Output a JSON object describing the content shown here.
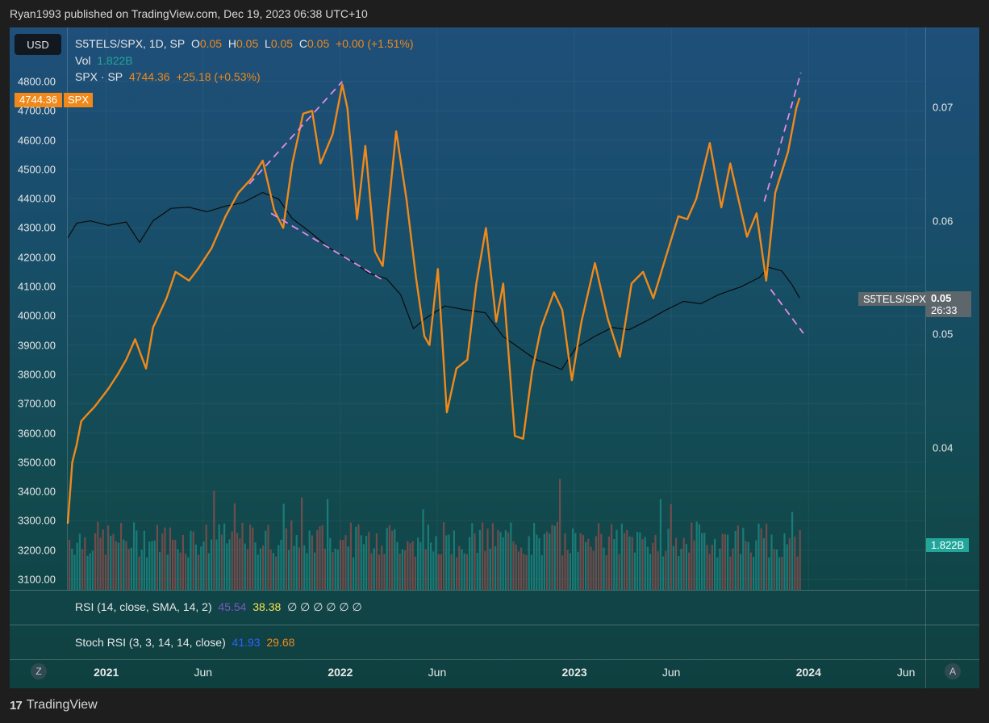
{
  "header": {
    "publisher_line": "Ryan1993 published on TradingView.com, Dec 19, 2023 06:38 UTC+10"
  },
  "currency_button": "USD",
  "legend": {
    "main_symbol": "S5TELS/SPX, 1D, SP",
    "o_label": "O",
    "o_value": "0.05",
    "h_label": "H",
    "h_value": "0.05",
    "l_label": "L",
    "l_value": "0.05",
    "c_label": "C",
    "c_value": "0.05",
    "change": "+0.00 (+1.51%)",
    "vol_label": "Vol",
    "vol_value": "1.822B",
    "overlay_symbol": "SPX · SP",
    "overlay_value": "4744.36",
    "overlay_change": "+25.18 (+0.53%)"
  },
  "price_flag": {
    "value": "4744.36",
    "symbol": "SPX"
  },
  "right_flags": {
    "symbol": "S5TELS/SPX",
    "value": "0.05",
    "countdown": "26:33",
    "volume": "1.822B"
  },
  "indicators": {
    "rsi_label": "RSI (14, close, SMA, 14, 2)",
    "rsi_value": "45.54",
    "rsi_ma": "38.38",
    "rsi_extra": "∅ ∅ ∅ ∅ ∅ ∅",
    "stoch_label": "Stoch RSI (3, 3, 14, 14, close)",
    "stoch_k": "41.93",
    "stoch_d": "29.68"
  },
  "time_axis": [
    "2021",
    "Jun",
    "2022",
    "Jun",
    "2023",
    "Jun",
    "2024",
    "Jun"
  ],
  "axis_buttons": {
    "left": "Z",
    "right": "A"
  },
  "footer": {
    "brand": "TradingView",
    "logo_text": "17"
  },
  "colors": {
    "spx": "#f0891a",
    "ratio": "#0b0b0b",
    "trendline": "#e58ae6",
    "vol_up": "#22a69a",
    "vol_down": "#c0504d",
    "rsi": "#7e57c2",
    "rsi_ma": "#f5e34b",
    "stoch_k": "#2962ff",
    "stoch_d": "#f0891a"
  },
  "chart_data": {
    "type": "line",
    "left_axis_ticks": [
      "4800.00",
      "4700.00",
      "4600.00",
      "4500.00",
      "4400.00",
      "4300.00",
      "4200.00",
      "4100.00",
      "4000.00",
      "3900.00",
      "3800.00",
      "3700.00",
      "3600.00",
      "3500.00",
      "3400.00",
      "3300.00",
      "3200.00",
      "3100.00"
    ],
    "right_axis_ticks": [
      "0.07",
      "0.06",
      "0.05",
      "0.04"
    ],
    "left_ylim": [
      3100,
      4800
    ],
    "right_ylim": [
      0.04,
      0.07
    ],
    "series": [
      {
        "name": "SPX · SP",
        "axis": "left",
        "points": [
          [
            "2020-11-02",
            3290
          ],
          [
            "2020-11-09",
            3500
          ],
          [
            "2020-11-16",
            3560
          ],
          [
            "2020-11-23",
            3640
          ],
          [
            "2020-12-01",
            3660
          ],
          [
            "2020-12-14",
            3690
          ],
          [
            "2021-01-04",
            3750
          ],
          [
            "2021-01-19",
            3800
          ],
          [
            "2021-02-01",
            3850
          ],
          [
            "2021-02-15",
            3920
          ],
          [
            "2021-03-04",
            3820
          ],
          [
            "2021-03-15",
            3960
          ],
          [
            "2021-04-05",
            4060
          ],
          [
            "2021-04-19",
            4150
          ],
          [
            "2021-05-10",
            4120
          ],
          [
            "2021-05-24",
            4160
          ],
          [
            "2021-06-14",
            4230
          ],
          [
            "2021-07-06",
            4340
          ],
          [
            "2021-07-26",
            4420
          ],
          [
            "2021-08-16",
            4470
          ],
          [
            "2021-09-02",
            4530
          ],
          [
            "2021-09-20",
            4360
          ],
          [
            "2021-10-04",
            4300
          ],
          [
            "2021-10-18",
            4520
          ],
          [
            "2021-11-04",
            4690
          ],
          [
            "2021-11-18",
            4700
          ],
          [
            "2021-12-01",
            4520
          ],
          [
            "2021-12-20",
            4620
          ],
          [
            "2022-01-04",
            4790
          ],
          [
            "2022-01-12",
            4710
          ],
          [
            "2022-01-27",
            4330
          ],
          [
            "2022-02-09",
            4580
          ],
          [
            "2022-02-24",
            4220
          ],
          [
            "2022-03-08",
            4170
          ],
          [
            "2022-03-29",
            4630
          ],
          [
            "2022-04-14",
            4400
          ],
          [
            "2022-04-29",
            4130
          ],
          [
            "2022-05-12",
            3930
          ],
          [
            "2022-05-20",
            3900
          ],
          [
            "2022-06-02",
            4160
          ],
          [
            "2022-06-16",
            3670
          ],
          [
            "2022-07-01",
            3820
          ],
          [
            "2022-07-18",
            3850
          ],
          [
            "2022-08-01",
            4110
          ],
          [
            "2022-08-16",
            4300
          ],
          [
            "2022-09-01",
            3980
          ],
          [
            "2022-09-12",
            4110
          ],
          [
            "2022-09-30",
            3590
          ],
          [
            "2022-10-13",
            3580
          ],
          [
            "2022-10-27",
            3810
          ],
          [
            "2022-11-10",
            3960
          ],
          [
            "2022-11-30",
            4080
          ],
          [
            "2022-12-13",
            4020
          ],
          [
            "2022-12-28",
            3780
          ],
          [
            "2023-01-12",
            3980
          ],
          [
            "2023-02-02",
            4180
          ],
          [
            "2023-02-22",
            3990
          ],
          [
            "2023-03-13",
            3860
          ],
          [
            "2023-03-31",
            4110
          ],
          [
            "2023-04-18",
            4150
          ],
          [
            "2023-05-04",
            4060
          ],
          [
            "2023-05-22",
            4190
          ],
          [
            "2023-06-12",
            4340
          ],
          [
            "2023-06-26",
            4330
          ],
          [
            "2023-07-10",
            4400
          ],
          [
            "2023-07-31",
            4590
          ],
          [
            "2023-08-18",
            4370
          ],
          [
            "2023-09-01",
            4520
          ],
          [
            "2023-09-27",
            4270
          ],
          [
            "2023-10-12",
            4350
          ],
          [
            "2023-10-27",
            4120
          ],
          [
            "2023-11-10",
            4420
          ],
          [
            "2023-11-30",
            4560
          ],
          [
            "2023-12-13",
            4710
          ],
          [
            "2023-12-18",
            4744.36
          ]
        ]
      },
      {
        "name": "S5TELS/SPX",
        "axis": "right",
        "points": [
          [
            "2020-11-02",
            0.0585
          ],
          [
            "2020-11-16",
            0.0598
          ],
          [
            "2020-12-07",
            0.06
          ],
          [
            "2021-01-04",
            0.0596
          ],
          [
            "2021-02-01",
            0.0599
          ],
          [
            "2021-02-22",
            0.0581
          ],
          [
            "2021-03-15",
            0.06
          ],
          [
            "2021-04-12",
            0.0611
          ],
          [
            "2021-05-10",
            0.0612
          ],
          [
            "2021-06-07",
            0.0608
          ],
          [
            "2021-07-06",
            0.0613
          ],
          [
            "2021-08-02",
            0.0616
          ],
          [
            "2021-09-02",
            0.0625
          ],
          [
            "2021-09-27",
            0.0619
          ],
          [
            "2021-10-18",
            0.0602
          ],
          [
            "2021-11-15",
            0.059
          ],
          [
            "2021-12-15",
            0.0576
          ],
          [
            "2022-01-18",
            0.0565
          ],
          [
            "2022-02-14",
            0.0554
          ],
          [
            "2022-03-14",
            0.0549
          ],
          [
            "2022-04-05",
            0.0535
          ],
          [
            "2022-04-25",
            0.0505
          ],
          [
            "2022-05-16",
            0.0515
          ],
          [
            "2022-06-13",
            0.0525
          ],
          [
            "2022-07-11",
            0.0522
          ],
          [
            "2022-08-15",
            0.0519
          ],
          [
            "2022-09-12",
            0.0498
          ],
          [
            "2022-10-12",
            0.0486
          ],
          [
            "2022-11-01",
            0.0478
          ],
          [
            "2022-11-21",
            0.0474
          ],
          [
            "2022-12-12",
            0.0469
          ],
          [
            "2023-01-03",
            0.0488
          ],
          [
            "2023-02-01",
            0.0498
          ],
          [
            "2023-03-01",
            0.0506
          ],
          [
            "2023-03-27",
            0.0504
          ],
          [
            "2023-04-24",
            0.0512
          ],
          [
            "2023-05-22",
            0.0521
          ],
          [
            "2023-06-20",
            0.0529
          ],
          [
            "2023-07-17",
            0.0527
          ],
          [
            "2023-08-14",
            0.0535
          ],
          [
            "2023-09-18",
            0.0542
          ],
          [
            "2023-10-16",
            0.055
          ],
          [
            "2023-10-31",
            0.0559
          ],
          [
            "2023-11-20",
            0.0556
          ],
          [
            "2023-12-06",
            0.0544
          ],
          [
            "2023-12-18",
            0.0532
          ]
        ]
      }
    ],
    "trendlines": [
      {
        "axis": "left",
        "from": [
          "2021-08-12",
          4450
        ],
        "to": [
          "2022-01-04",
          4800
        ]
      },
      {
        "axis": "left",
        "from": [
          "2021-09-15",
          4350
        ],
        "to": [
          "2022-03-10",
          4120
        ]
      },
      {
        "axis": "left",
        "from": [
          "2023-10-24",
          4390
        ],
        "to": [
          "2023-12-20",
          4830
        ]
      },
      {
        "axis": "left",
        "from": [
          "2023-11-03",
          4090
        ],
        "to": [
          "2023-12-24",
          3940
        ]
      }
    ],
    "volume_last": "1.822B",
    "xlim": [
      "2020-11-02",
      "2024-07-01"
    ],
    "grid": true,
    "log_scale": false
  }
}
